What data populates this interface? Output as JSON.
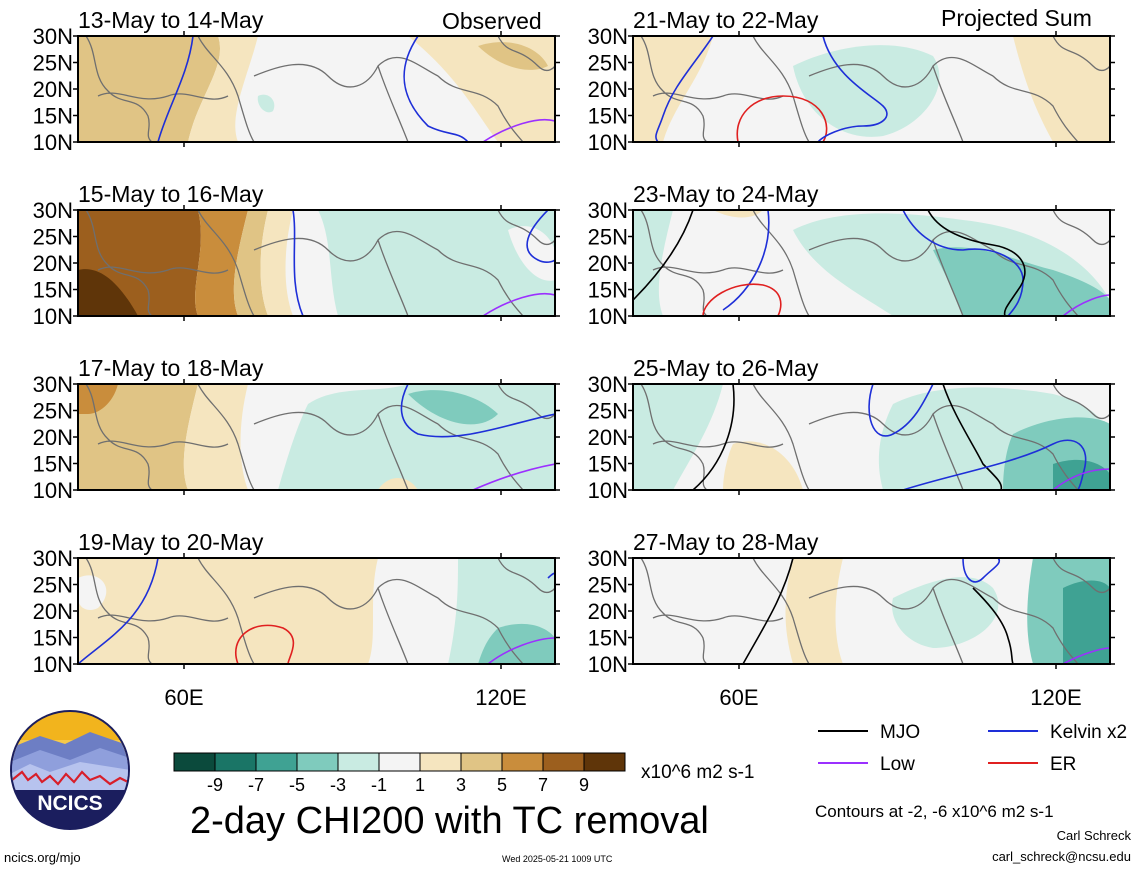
{
  "header": {
    "observed_label": "Observed",
    "projected_label": "Projected Sum"
  },
  "panels": [
    {
      "title": "13-May to 14-May",
      "column": "left",
      "row": 0,
      "pattern": "obs1"
    },
    {
      "title": "15-May to 16-May",
      "column": "left",
      "row": 1,
      "pattern": "obs2"
    },
    {
      "title": "17-May to 18-May",
      "column": "left",
      "row": 2,
      "pattern": "obs3"
    },
    {
      "title": "19-May to 20-May",
      "column": "left",
      "row": 3,
      "pattern": "obs4"
    },
    {
      "title": "21-May to 22-May",
      "column": "right",
      "row": 0,
      "pattern": "proj1"
    },
    {
      "title": "23-May to 24-May",
      "column": "right",
      "row": 1,
      "pattern": "proj2"
    },
    {
      "title": "25-May to 26-May",
      "column": "right",
      "row": 2,
      "pattern": "proj3"
    },
    {
      "title": "27-May to 28-May",
      "column": "right",
      "row": 3,
      "pattern": "proj4"
    }
  ],
  "axes": {
    "lat_labels": [
      "30N",
      "25N",
      "20N",
      "15N",
      "10N"
    ],
    "lon_labels": [
      "60E",
      "120E"
    ]
  },
  "colorbar": {
    "tick_labels": [
      "-9",
      "-7",
      "-5",
      "-3",
      "-1",
      "1",
      "3",
      "5",
      "7",
      "9"
    ],
    "colors": [
      "#0b4a3c",
      "#1a7566",
      "#3fa293",
      "#7fcbbd",
      "#c9ebe2",
      "#f4f4f4",
      "#f5e5bf",
      "#e0c485",
      "#c98d3c",
      "#9c5f1e",
      "#5f3509"
    ],
    "units": "x10^6 m2 s-1"
  },
  "title": "2-day CHI200 with TC removal",
  "legend": {
    "items": [
      {
        "label": "MJO",
        "color": "#000000"
      },
      {
        "label": "Kelvin x2",
        "color": "#1e2fd8"
      },
      {
        "label": "Low",
        "color": "#9b30ff"
      },
      {
        "label": "ER",
        "color": "#e02020"
      }
    ],
    "contours_note": "Contours at -2, -6 x10^6 m2 s-1"
  },
  "credits": {
    "author": "Carl Schreck",
    "email": "carl_schreck@ncsu.edu",
    "site": "ncics.org/mjo",
    "timestamp": "Wed 2025-05-21 1009 UTC",
    "logo_text": "NCICS"
  }
}
